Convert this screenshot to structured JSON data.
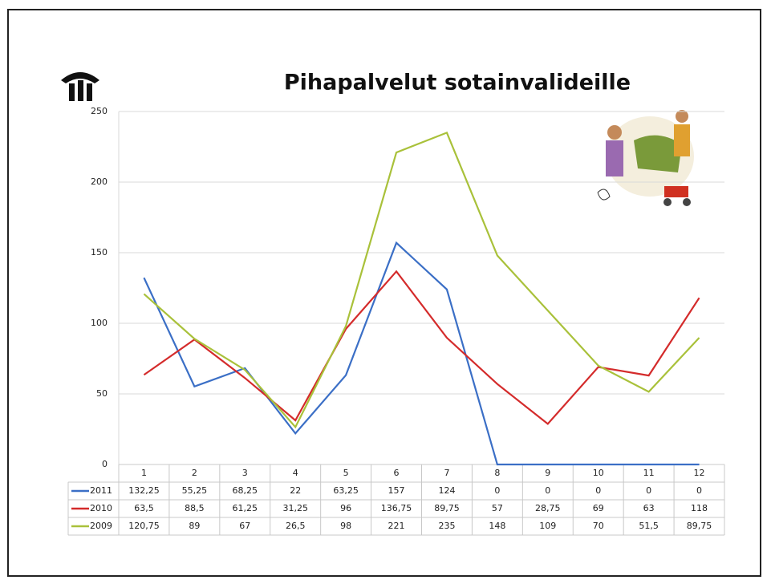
{
  "chart_data": {
    "type": "line",
    "title": "Pihapalvelut sotainvalideille",
    "categories": [
      "1",
      "2",
      "3",
      "4",
      "5",
      "6",
      "7",
      "8",
      "9",
      "10",
      "11",
      "12"
    ],
    "ylim": [
      0,
      250
    ],
    "yticks": [
      0,
      50,
      100,
      150,
      200,
      250
    ],
    "grid": true,
    "series": [
      {
        "name": "2011",
        "color": "#3b6fc6",
        "values": [
          132.25,
          55.25,
          68.25,
          22,
          63.25,
          157,
          124,
          0,
          0,
          0,
          0,
          0
        ],
        "value_labels": [
          "132,25",
          "55,25",
          "68,25",
          "22",
          "63,25",
          "157",
          "124",
          "0",
          "0",
          "0",
          "0",
          "0"
        ]
      },
      {
        "name": "2010",
        "color": "#d42b2b",
        "values": [
          63.5,
          88.5,
          61.25,
          31.25,
          96,
          136.75,
          89.75,
          57,
          28.75,
          69,
          63,
          118
        ],
        "value_labels": [
          "63,5",
          "88,5",
          "61,25",
          "31,25",
          "96",
          "136,75",
          "89,75",
          "57",
          "28,75",
          "69",
          "63",
          "118"
        ]
      },
      {
        "name": "2009",
        "color": "#a9c13a",
        "values": [
          120.75,
          89,
          67,
          26.5,
          98,
          221,
          235,
          148,
          109,
          70,
          51.5,
          89.75
        ],
        "value_labels": [
          "120,75",
          "89",
          "67",
          "26,5",
          "98",
          "221",
          "235",
          "148",
          "109",
          "70",
          "51,5",
          "89,75"
        ]
      }
    ]
  }
}
